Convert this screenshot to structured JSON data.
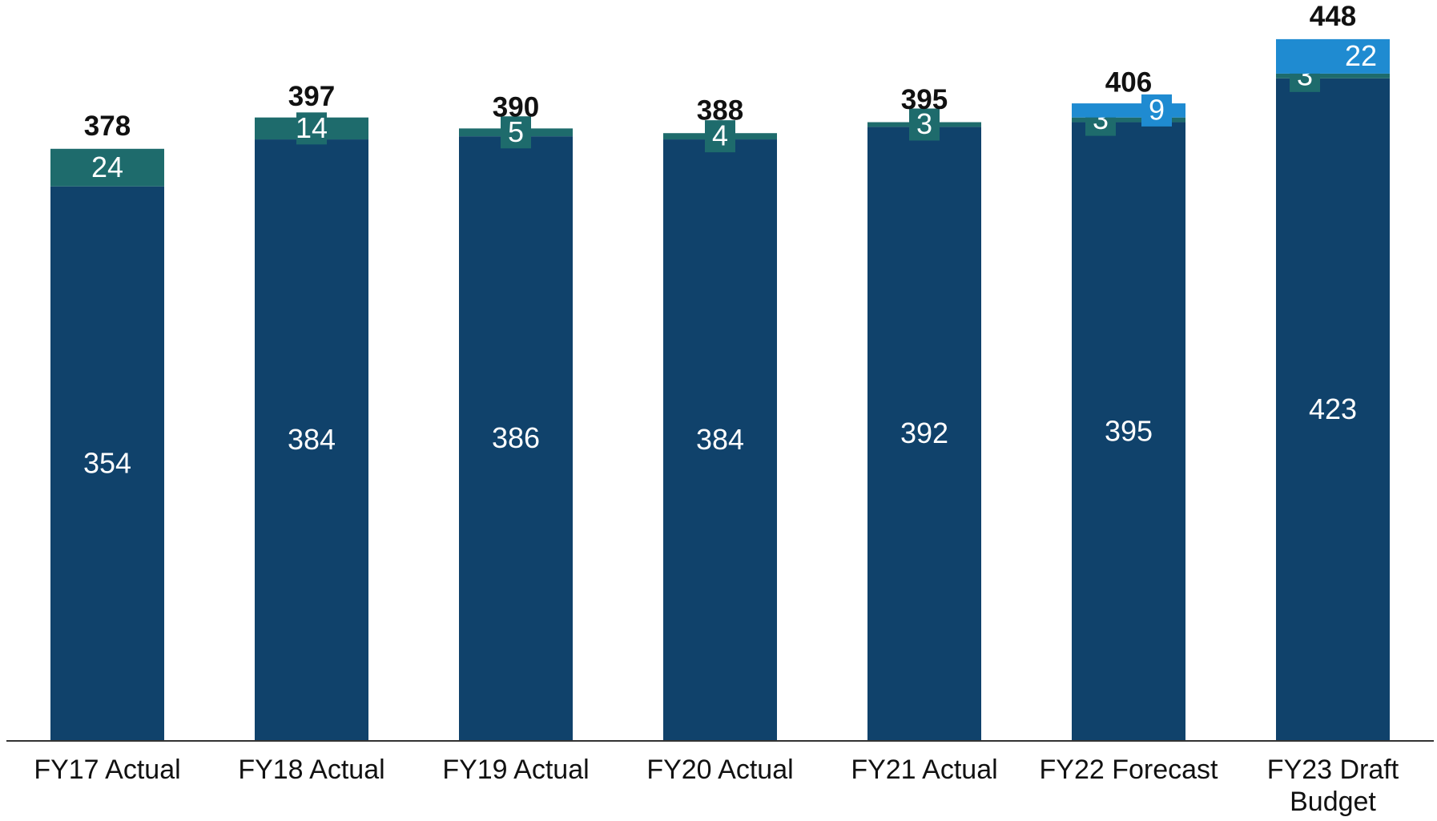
{
  "chart_data": {
    "type": "stacked_bar",
    "categories": [
      "FY17 Actual",
      "FY18 Actual",
      "FY19 Actual",
      "FY20 Actual",
      "FY21 Actual",
      "FY22 Forecast",
      "FY23 Draft Budget"
    ],
    "series": [
      {
        "color": "#10426b",
        "values": [
          354,
          384,
          386,
          384,
          392,
          395,
          423
        ]
      },
      {
        "color": "#1e6b6c",
        "values": [
          24,
          14,
          5,
          4,
          3,
          3,
          3
        ]
      },
      {
        "color": "#1f8bd1",
        "values": [
          null,
          null,
          null,
          null,
          null,
          9,
          22
        ]
      }
    ],
    "totals": [
      378,
      397,
      390,
      388,
      395,
      406,
      448
    ],
    "ylim": [
      0,
      473
    ]
  }
}
